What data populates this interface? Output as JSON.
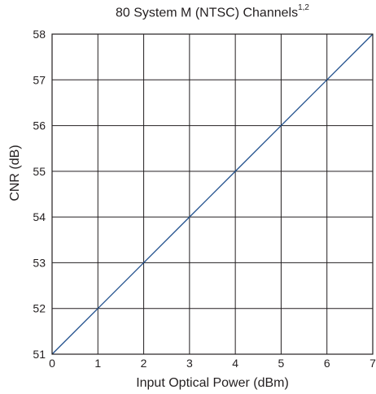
{
  "chart_data": {
    "type": "line",
    "title": "80 System M (NTSC) Channels",
    "title_superscript": "1,2",
    "xlabel": "Input Optical Power (dBm)",
    "ylabel": "CNR (dB)",
    "xlim": [
      0,
      7
    ],
    "ylim": [
      51,
      58
    ],
    "x_ticks": [
      0,
      1,
      2,
      3,
      4,
      5,
      6,
      7
    ],
    "y_ticks": [
      51,
      52,
      53,
      54,
      55,
      56,
      57,
      58
    ],
    "grid": true,
    "series": [
      {
        "color": "#1f4e8c",
        "x": [
          0,
          1,
          2,
          3,
          4,
          5,
          6,
          7
        ],
        "y": [
          51,
          52,
          53,
          54,
          55,
          56,
          57,
          58
        ]
      }
    ]
  }
}
